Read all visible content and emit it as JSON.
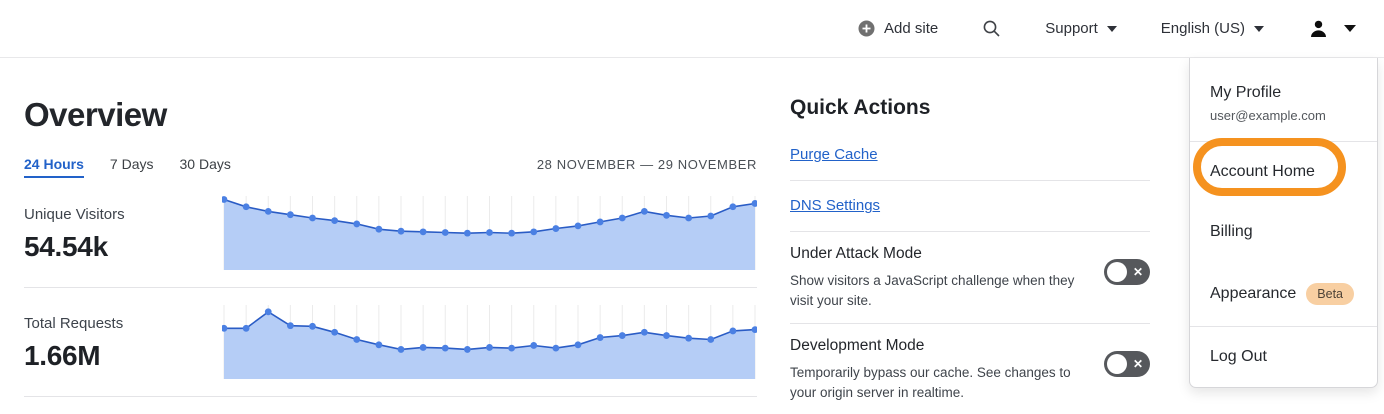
{
  "header": {
    "add_site_label": "Add site",
    "support_label": "Support",
    "language_label": "English (US)"
  },
  "overview": {
    "title": "Overview",
    "tabs": [
      {
        "label": "24 Hours",
        "active": true
      },
      {
        "label": "7 Days",
        "active": false
      },
      {
        "label": "30 Days",
        "active": false
      }
    ],
    "date_range": "28 NOVEMBER — 29 NOVEMBER",
    "metrics": [
      {
        "label": "Unique Visitors",
        "value": "54.54k"
      },
      {
        "label": "Total Requests",
        "value": "1.66M"
      }
    ]
  },
  "quick_actions": {
    "title": "Quick Actions",
    "links": [
      "Purge Cache",
      "DNS Settings"
    ],
    "toggles": [
      {
        "title": "Under Attack Mode",
        "description": "Show visitors a JavaScript challenge when they visit your site.",
        "state": "off",
        "icon": "x-icon"
      },
      {
        "title": "Development Mode",
        "description": "Temporarily bypass our cache. See changes to your origin server in realtime.",
        "state": "off",
        "icon": "x-icon"
      }
    ],
    "toggle_x_glyph": "✕"
  },
  "user_menu": {
    "profile_label": "My Profile",
    "email": "user@example.com",
    "items": [
      "Account Home",
      "Billing",
      "Appearance",
      "Log Out"
    ],
    "beta_badge": "Beta",
    "beta_badge_bg": "#f8cfa2",
    "highlighted_item": "Account Home",
    "highlight_color": "#f5921f"
  },
  "chart_data": [
    {
      "type": "area",
      "title": "Unique Visitors",
      "total_label": "54.54k",
      "x_range": "28 November — 29 November (24 Hours)",
      "values_relative": [
        1.0,
        0.89,
        0.82,
        0.77,
        0.72,
        0.68,
        0.63,
        0.55,
        0.52,
        0.51,
        0.5,
        0.49,
        0.5,
        0.49,
        0.51,
        0.56,
        0.6,
        0.66,
        0.72,
        0.82,
        0.76,
        0.72,
        0.75,
        0.89,
        0.94
      ],
      "ylim": [
        0,
        1
      ],
      "grid": "vertical",
      "line_color": "#2a5cc5",
      "fill_color": "#b5cdf6",
      "point_color": "#4b80e3",
      "grid_color": "#ebebeb"
    },
    {
      "type": "area",
      "title": "Total Requests",
      "total_label": "1.66M",
      "x_range": "28 November — 29 November (24 Hours)",
      "values_relative": [
        0.7,
        0.7,
        0.95,
        0.74,
        0.73,
        0.64,
        0.53,
        0.45,
        0.38,
        0.41,
        0.4,
        0.38,
        0.41,
        0.4,
        0.44,
        0.4,
        0.45,
        0.56,
        0.59,
        0.64,
        0.59,
        0.55,
        0.53,
        0.66,
        0.68
      ],
      "ylim": [
        0,
        1
      ],
      "grid": "vertical",
      "line_color": "#2a5cc5",
      "fill_color": "#b5cdf6",
      "point_color": "#4b80e3",
      "grid_color": "#ebebeb"
    }
  ]
}
